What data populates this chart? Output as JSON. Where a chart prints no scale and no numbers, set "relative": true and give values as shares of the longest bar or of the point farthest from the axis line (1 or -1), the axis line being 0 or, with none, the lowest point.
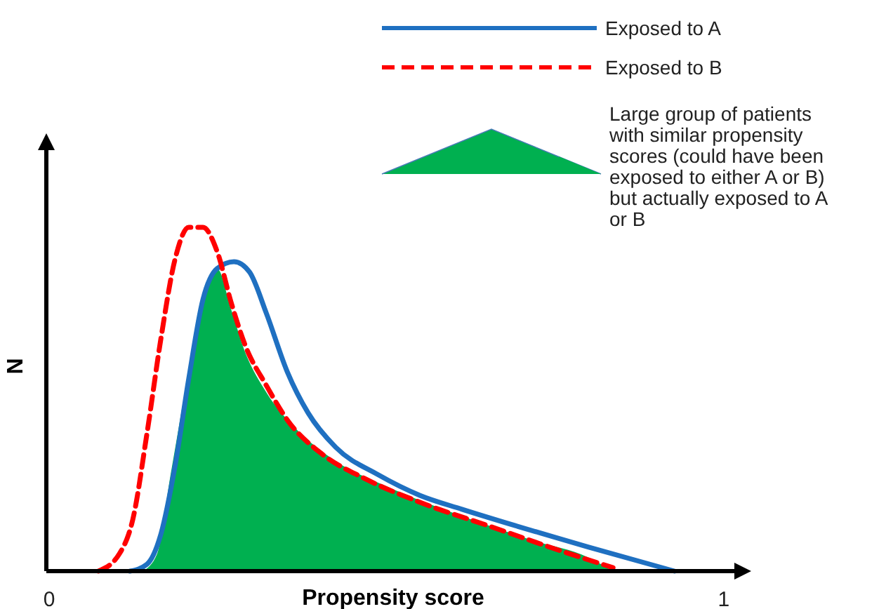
{
  "chart_data": {
    "type": "line",
    "xlabel": "Propensity score",
    "ylabel": "N",
    "relative": true,
    "xlim": [
      0,
      1.02
    ],
    "xticks": [
      0,
      1
    ],
    "legend": "top right",
    "grid": false,
    "marker": "none",
    "series": [
      {
        "name": "Exposed to A",
        "color": "#1f70c1",
        "line_style": "solid",
        "x": [
          0.12,
          0.145,
          0.166,
          0.187,
          0.207,
          0.228,
          0.249,
          0.274,
          0.297,
          0.322,
          0.353,
          0.384,
          0.425,
          0.488,
          0.55,
          0.612,
          0.695,
          0.799,
          0.927
        ],
        "values": [
          0,
          0.02,
          0.11,
          0.31,
          0.56,
          0.79,
          0.88,
          0.9,
          0.87,
          0.75,
          0.58,
          0.46,
          0.36,
          0.28,
          0.22,
          0.18,
          0.13,
          0.07,
          0
        ]
      },
      {
        "name": "Exposed to B",
        "color": "#ff0000",
        "line_style": "dashed",
        "x": [
          0.073,
          0.104,
          0.124,
          0.145,
          0.166,
          0.187,
          0.207,
          0.228,
          0.249,
          0.27,
          0.29,
          0.322,
          0.353,
          0.405,
          0.467,
          0.55,
          0.654,
          0.757,
          0.836
        ],
        "values": [
          0,
          0.05,
          0.15,
          0.4,
          0.68,
          0.91,
          1,
          1,
          0.93,
          0.78,
          0.66,
          0.54,
          0.44,
          0.34,
          0.27,
          0.2,
          0.13,
          0.06,
          0.01
        ]
      },
      {
        "type": "area",
        "name": "Large group of patients with similar propensity scores (could have been exposed to either A or B) but actually exposed to A or B",
        "color": "#00b050",
        "x": [
          0.139,
          0.16,
          0.18,
          0.207,
          0.234,
          0.249,
          0.27,
          0.29,
          0.322,
          0.363,
          0.425,
          0.508,
          0.612,
          0.716,
          0.799,
          0.836
        ],
        "values": [
          0,
          0.05,
          0.28,
          0.58,
          0.83,
          0.88,
          0.76,
          0.64,
          0.52,
          0.42,
          0.32,
          0.24,
          0.16,
          0.09,
          0.04,
          0
        ]
      }
    ]
  }
}
